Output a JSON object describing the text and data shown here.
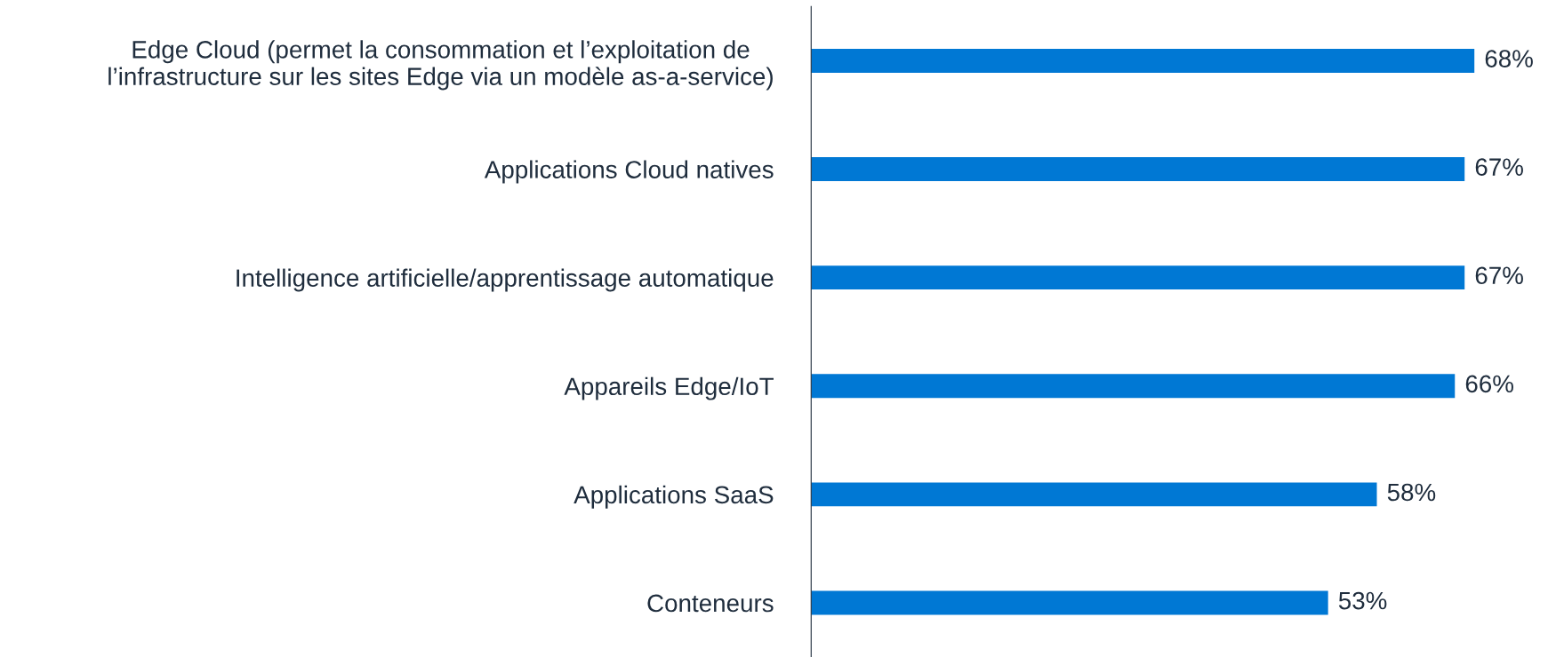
{
  "chart_data": {
    "type": "bar",
    "orientation": "horizontal",
    "categories": [
      "Edge Cloud (permet la consommation et l’exploitation de\nl’infrastructure sur les sites Edge via un modèle as-a-service)",
      "Applications Cloud natives",
      "Intelligence artificielle/apprentissage automatique",
      "Appareils Edge/IoT",
      "Applications SaaS",
      "Conteneurs"
    ],
    "values": [
      68,
      67,
      67,
      66,
      58,
      53
    ],
    "value_labels": [
      "68%",
      "67%",
      "67%",
      "66%",
      "58%",
      "53%"
    ],
    "color": "#0078d4",
    "grid": false,
    "tick_labels": "y"
  }
}
